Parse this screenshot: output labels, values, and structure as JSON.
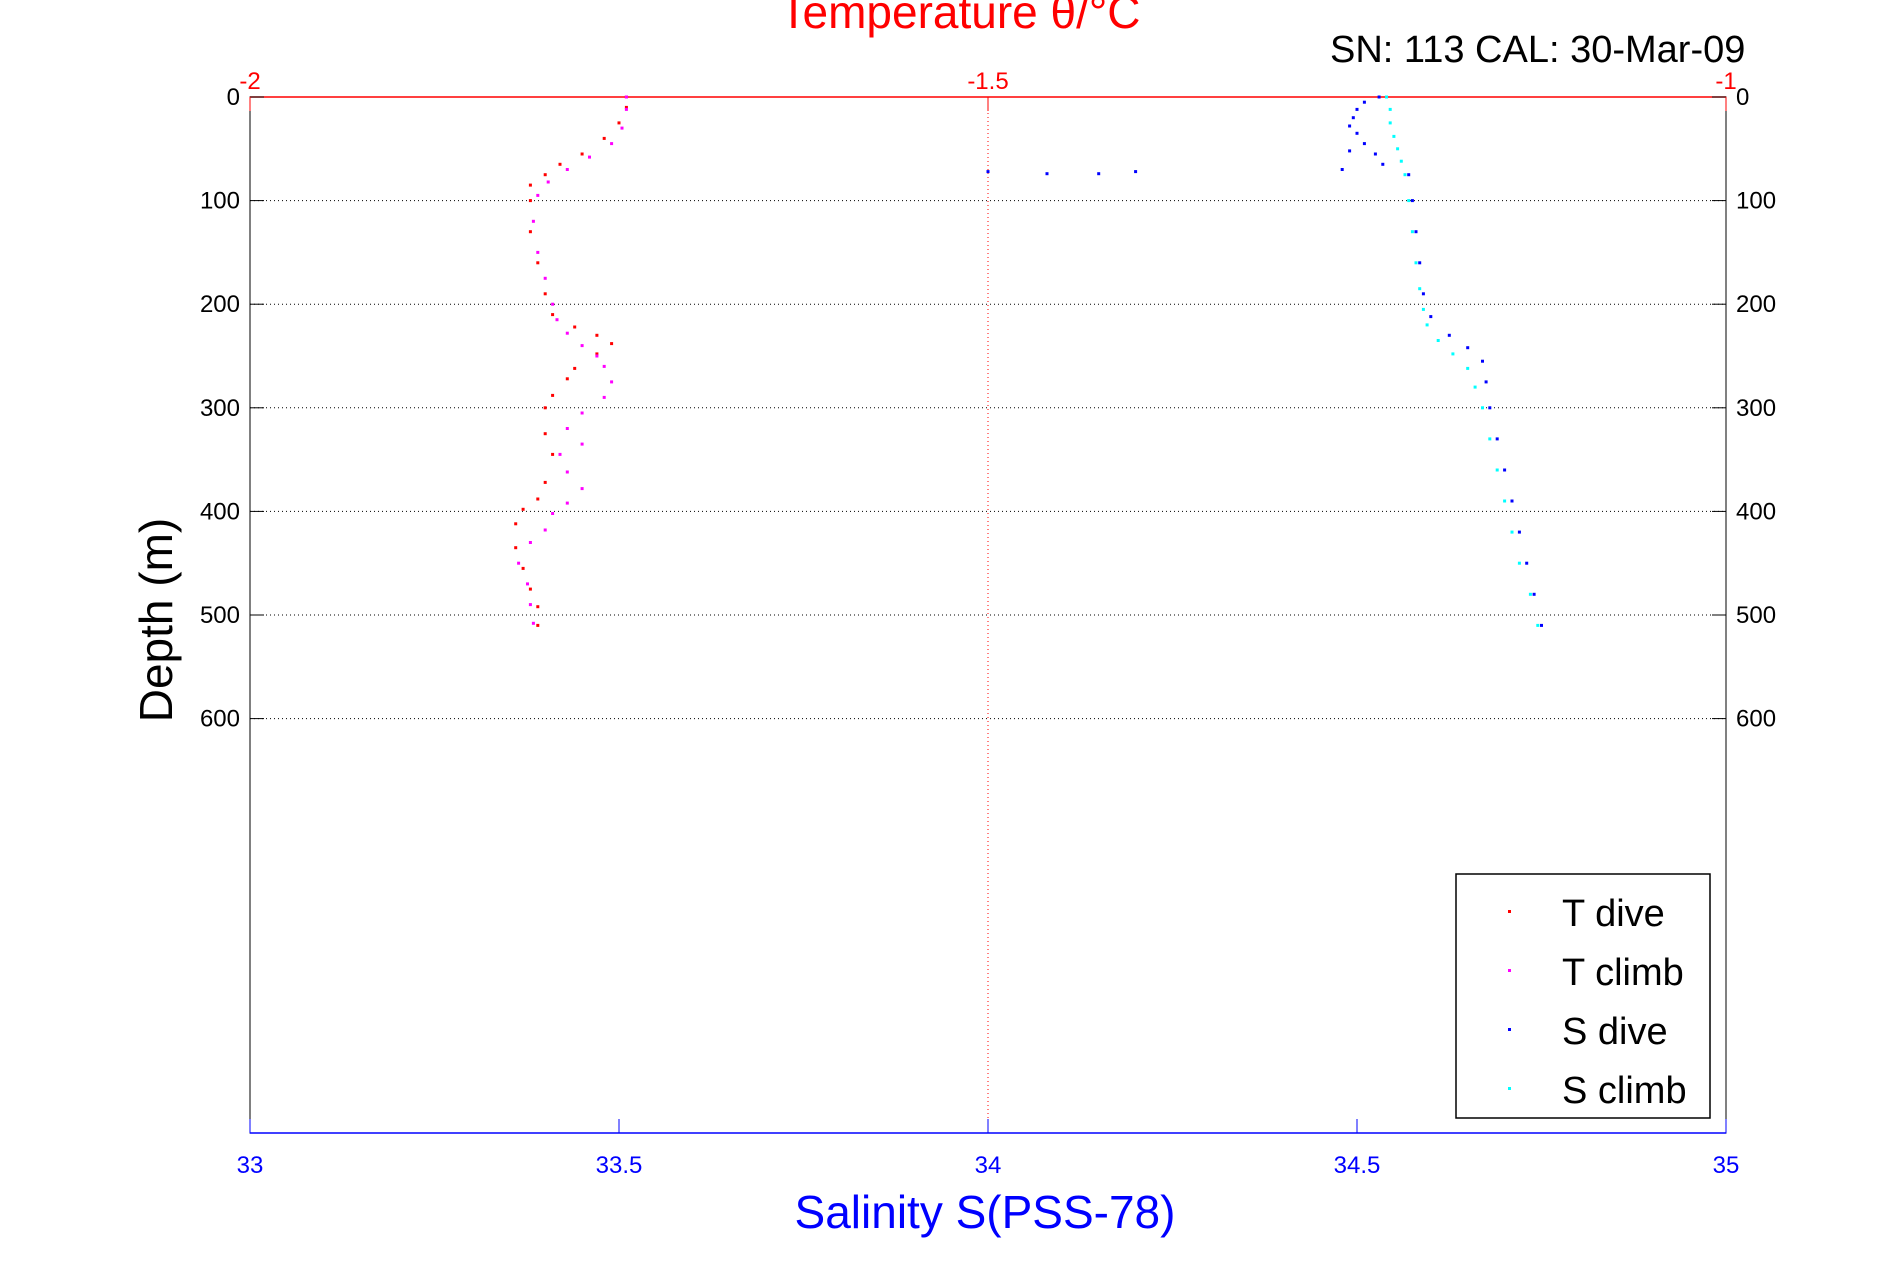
{
  "annotation": "SN: 113  CAL: 30-Mar-09",
  "colors": {
    "temperature_axis": "#ff0000",
    "salinity_axis": "#0000ff",
    "depth_axis": "#000000",
    "t_dive": "#ff0000",
    "t_climb": "#ff00ff",
    "s_dive": "#0000ff",
    "s_climb": "#00ffff"
  },
  "chart_data": {
    "type": "scatter",
    "title": "Temperature θ/°C",
    "xlabel_bottom": "Salinity S(PSS-78)",
    "xlabel_top": "Temperature θ/°C",
    "ylabel": "Depth (m)",
    "x_bottom_range": [
      33,
      35
    ],
    "x_top_range": [
      -2,
      -1
    ],
    "y_range": [
      0,
      1000
    ],
    "y_reversed": true,
    "x_bottom_ticks": [
      "33",
      "33.5",
      "34",
      "34.5",
      "35"
    ],
    "x_top_ticks": [
      "-2",
      "-1.5",
      "-1"
    ],
    "y_ticks": [
      "0",
      "100",
      "200",
      "300",
      "400",
      "500",
      "600"
    ],
    "grid": true,
    "legend_position": "bottom-right",
    "series": [
      {
        "name": "T dive",
        "axis": "temperature",
        "points": [
          [
            -1.745,
            0
          ],
          [
            -1.745,
            10
          ],
          [
            -1.75,
            25
          ],
          [
            -1.76,
            40
          ],
          [
            -1.775,
            55
          ],
          [
            -1.79,
            65
          ],
          [
            -1.8,
            75
          ],
          [
            -1.81,
            85
          ],
          [
            -1.81,
            100
          ],
          [
            -1.81,
            130
          ],
          [
            -1.805,
            160
          ],
          [
            -1.8,
            190
          ],
          [
            -1.795,
            210
          ],
          [
            -1.78,
            222
          ],
          [
            -1.765,
            230
          ],
          [
            -1.755,
            238
          ],
          [
            -1.765,
            248
          ],
          [
            -1.78,
            262
          ],
          [
            -1.785,
            272
          ],
          [
            -1.795,
            288
          ],
          [
            -1.8,
            300
          ],
          [
            -1.8,
            325
          ],
          [
            -1.795,
            345
          ],
          [
            -1.8,
            372
          ],
          [
            -1.805,
            388
          ],
          [
            -1.815,
            398
          ],
          [
            -1.82,
            412
          ],
          [
            -1.82,
            435
          ],
          [
            -1.815,
            455
          ],
          [
            -1.81,
            475
          ],
          [
            -1.805,
            492
          ],
          [
            -1.805,
            510
          ]
        ]
      },
      {
        "name": "T climb",
        "axis": "temperature",
        "points": [
          [
            -1.745,
            0
          ],
          [
            -1.745,
            12
          ],
          [
            -1.748,
            30
          ],
          [
            -1.755,
            45
          ],
          [
            -1.77,
            58
          ],
          [
            -1.785,
            70
          ],
          [
            -1.798,
            82
          ],
          [
            -1.805,
            95
          ],
          [
            -1.808,
            120
          ],
          [
            -1.805,
            150
          ],
          [
            -1.8,
            175
          ],
          [
            -1.795,
            200
          ],
          [
            -1.792,
            215
          ],
          [
            -1.785,
            228
          ],
          [
            -1.775,
            240
          ],
          [
            -1.765,
            250
          ],
          [
            -1.76,
            260
          ],
          [
            -1.755,
            275
          ],
          [
            -1.76,
            290
          ],
          [
            -1.775,
            305
          ],
          [
            -1.785,
            320
          ],
          [
            -1.775,
            335
          ],
          [
            -1.79,
            345
          ],
          [
            -1.785,
            362
          ],
          [
            -1.775,
            378
          ],
          [
            -1.785,
            392
          ],
          [
            -1.795,
            402
          ],
          [
            -1.8,
            418
          ],
          [
            -1.81,
            430
          ],
          [
            -1.818,
            450
          ],
          [
            -1.812,
            470
          ],
          [
            -1.81,
            490
          ],
          [
            -1.808,
            508
          ]
        ]
      },
      {
        "name": "S dive",
        "axis": "salinity",
        "points": [
          [
            34.53,
            0
          ],
          [
            34.51,
            5
          ],
          [
            34.5,
            12
          ],
          [
            34.495,
            20
          ],
          [
            34.49,
            28
          ],
          [
            34.5,
            35
          ],
          [
            34.51,
            45
          ],
          [
            34.525,
            55
          ],
          [
            34.535,
            65
          ],
          [
            34.48,
            70
          ],
          [
            34.2,
            72
          ],
          [
            34.15,
            74
          ],
          [
            34.08,
            74
          ],
          [
            34.0,
            72
          ],
          [
            34.49,
            52
          ],
          [
            34.57,
            75
          ],
          [
            34.575,
            100
          ],
          [
            34.58,
            130
          ],
          [
            34.585,
            160
          ],
          [
            34.59,
            190
          ],
          [
            34.6,
            212
          ],
          [
            34.625,
            230
          ],
          [
            34.65,
            242
          ],
          [
            34.67,
            255
          ],
          [
            34.675,
            275
          ],
          [
            34.68,
            300
          ],
          [
            34.69,
            330
          ],
          [
            34.7,
            360
          ],
          [
            34.71,
            390
          ],
          [
            34.72,
            420
          ],
          [
            34.73,
            450
          ],
          [
            34.74,
            480
          ],
          [
            34.75,
            510
          ]
        ]
      },
      {
        "name": "S climb",
        "axis": "salinity",
        "points": [
          [
            34.54,
            0
          ],
          [
            34.545,
            12
          ],
          [
            34.545,
            25
          ],
          [
            34.55,
            38
          ],
          [
            34.555,
            50
          ],
          [
            34.56,
            62
          ],
          [
            34.565,
            75
          ],
          [
            34.57,
            100
          ],
          [
            34.575,
            130
          ],
          [
            34.58,
            160
          ],
          [
            34.585,
            185
          ],
          [
            34.59,
            205
          ],
          [
            34.595,
            220
          ],
          [
            34.61,
            235
          ],
          [
            34.63,
            248
          ],
          [
            34.65,
            262
          ],
          [
            34.66,
            280
          ],
          [
            34.67,
            300
          ],
          [
            34.68,
            330
          ],
          [
            34.69,
            360
          ],
          [
            34.7,
            390
          ],
          [
            34.71,
            420
          ],
          [
            34.72,
            450
          ],
          [
            34.735,
            480
          ],
          [
            34.745,
            510
          ]
        ]
      }
    ]
  }
}
